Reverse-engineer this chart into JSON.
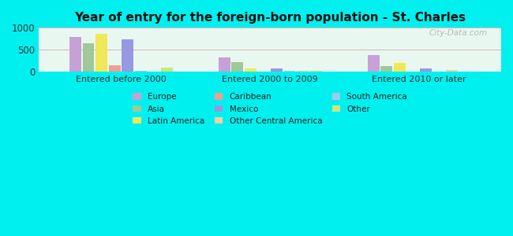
{
  "title": "Year of entry for the foreign-born population - St. Charles",
  "categories": [
    "Entered before 2000",
    "Entered 2000 to 2009",
    "Entered 2010 or later"
  ],
  "series": {
    "Europe": [
      790,
      320,
      370
    ],
    "Asia": [
      640,
      215,
      135
    ],
    "Latin America": [
      860,
      75,
      200
    ],
    "Caribbean": [
      145,
      0,
      0
    ],
    "Mexico": [
      730,
      70,
      65
    ],
    "South America": [
      20,
      20,
      0
    ],
    "Other Central America": [
      0,
      20,
      30
    ],
    "Other": [
      90,
      25,
      0
    ]
  },
  "bar_order": [
    "Europe",
    "Asia",
    "Latin America",
    "Caribbean",
    "Mexico",
    "South America",
    "Other Central America",
    "Other"
  ],
  "colors": {
    "Europe": "#c8a0d8",
    "Caribbean": "#f0a090",
    "South America": "#a0c8f0",
    "Asia": "#a0c898",
    "Mexico": "#9898e0",
    "Other": "#c8e878",
    "Latin America": "#f0e858",
    "Other Central America": "#f8d0a0"
  },
  "legend_order": [
    "Europe",
    "Asia",
    "Latin America",
    "Caribbean",
    "Mexico",
    "Other Central America",
    "South America",
    "Other"
  ],
  "ylim": [
    0,
    1000
  ],
  "yticks": [
    0,
    500,
    1000
  ],
  "background_color": "#00f0f0",
  "plot_bg_top": "#d8f8e8",
  "plot_bg_bottom": "#f0fef8",
  "watermark": "City-Data.com"
}
